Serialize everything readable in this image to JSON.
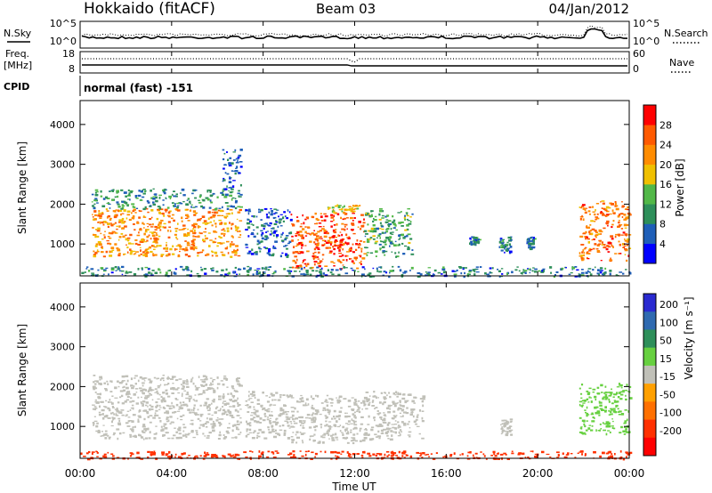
{
  "header": {
    "station": "Hokkaido (fitACF)",
    "beam": "Beam 03",
    "date": "04/Jan/2012"
  },
  "status_panels": {
    "nsky_label": "N.Sky",
    "nsearch_label": "N.Search",
    "noise_ticks": [
      "10^5",
      "10^0"
    ],
    "freq_label_line1": "Freq.",
    "freq_label_line2": "[MHz]",
    "freq_ticks": [
      "18",
      "8"
    ],
    "nave_label": "Nave",
    "nave_ticks": [
      "60",
      "0"
    ],
    "cpid_label": "CPID",
    "cpid_text": "normal (fast) -151"
  },
  "x_axis": {
    "title": "Time UT",
    "ticks": [
      "00:00",
      "04:00",
      "08:00",
      "12:00",
      "16:00",
      "20:00",
      "00:00"
    ]
  },
  "colors": {
    "power_scale": [
      "#0000ff",
      "#1f5fb8",
      "#2e8f5a",
      "#52b848",
      "#f0c000",
      "#ff8c00",
      "#ff5a00",
      "#ff0000"
    ],
    "velocity_scale": [
      "#2a2ad0",
      "#2f6ab0",
      "#2e8f5a",
      "#67d040",
      "#c0c0b8",
      "#c0c0b8",
      "#ffa000",
      "#ff7000",
      "#ff3000",
      "#ff0000"
    ],
    "ground_scatter": "#9e9e9e"
  },
  "chart_data": [
    {
      "type": "heatmap",
      "name": "power",
      "ylabel": "Slant Range [km]",
      "xlabel": "",
      "x_range_hours": [
        0,
        24
      ],
      "ylim": [
        200,
        4600
      ],
      "yticks": [
        "1000",
        "2000",
        "3000",
        "4000"
      ],
      "colorbar_label": "Power [dB]",
      "colorbar_ticks": [
        "4",
        "8",
        "12",
        "16",
        "20",
        "24",
        "28"
      ],
      "colorbar_range": [
        0,
        32
      ],
      "regions": [
        {
          "t": [
            0.5,
            7.0
          ],
          "r": [
            700,
            1900
          ],
          "value": 22
        },
        {
          "t": [
            0.5,
            7.0
          ],
          "r": [
            1900,
            2400
          ],
          "value": 10
        },
        {
          "t": [
            6.2,
            7.0
          ],
          "r": [
            2400,
            3400
          ],
          "value": 6
        },
        {
          "t": [
            7.2,
            9.2
          ],
          "r": [
            700,
            1900
          ],
          "value": 6
        },
        {
          "t": [
            9.2,
            12.4
          ],
          "r": [
            400,
            1800
          ],
          "value": 26
        },
        {
          "t": [
            10.8,
            12.2
          ],
          "r": [
            1800,
            2000
          ],
          "value": 18
        },
        {
          "t": [
            12.4,
            14.5
          ],
          "r": [
            700,
            1900
          ],
          "value": 12
        },
        {
          "t": [
            17.0,
            17.4
          ],
          "r": [
            1000,
            1200
          ],
          "value": 8
        },
        {
          "t": [
            18.3,
            18.8
          ],
          "r": [
            800,
            1200
          ],
          "value": 8
        },
        {
          "t": [
            19.5,
            19.8
          ],
          "r": [
            900,
            1200
          ],
          "value": 8
        },
        {
          "t": [
            21.8,
            24.0
          ],
          "r": [
            600,
            2100
          ],
          "value": 24
        },
        {
          "t": [
            0.0,
            24.0
          ],
          "r": [
            200,
            450
          ],
          "value": 8
        }
      ]
    },
    {
      "type": "heatmap",
      "name": "velocity",
      "ylabel": "Slant Range [km]",
      "xlabel": "Time UT",
      "x_range_hours": [
        0,
        24
      ],
      "ylim": [
        200,
        4600
      ],
      "yticks": [
        "1000",
        "2000",
        "3000",
        "4000"
      ],
      "colorbar_label": "Velocity [m s⁻¹]",
      "colorbar_ticks": [
        "200",
        "100",
        "50",
        "15",
        "-15",
        "-50",
        "-100",
        "-200"
      ],
      "colorbar_range": [
        -250,
        250
      ],
      "regions": [
        {
          "t": [
            0.5,
            7.0
          ],
          "r": [
            700,
            2300
          ],
          "value": 0
        },
        {
          "t": [
            7.2,
            9.2
          ],
          "r": [
            700,
            1900
          ],
          "value": 0
        },
        {
          "t": [
            9.2,
            12.4
          ],
          "r": [
            600,
            1800
          ],
          "value": 0
        },
        {
          "t": [
            12.4,
            15.0
          ],
          "r": [
            700,
            1900
          ],
          "value": 0
        },
        {
          "t": [
            18.3,
            18.8
          ],
          "r": [
            800,
            1200
          ],
          "value": 0
        },
        {
          "t": [
            21.8,
            24.0
          ],
          "r": [
            800,
            2100
          ],
          "value": 40
        },
        {
          "t": [
            0.0,
            24.0
          ],
          "r": [
            200,
            400
          ],
          "value": -120
        }
      ]
    }
  ]
}
